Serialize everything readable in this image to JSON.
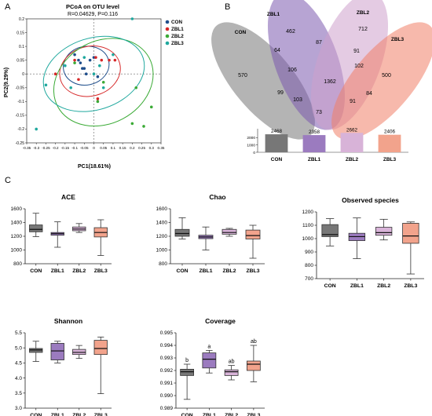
{
  "panel_labels": {
    "a": "A",
    "b": "B",
    "c": "C"
  },
  "colors": {
    "CON": "#1f4e8c",
    "ZBL1": "#d62728",
    "ZBL2": "#3aaa35",
    "ZBL3": "#1fa89e"
  },
  "box_colors": {
    "CON": "#777777",
    "ZBL1": "#9b7bbf",
    "ZBL2": "#d8b3d8",
    "ZBL3": "#f2a38c"
  },
  "chart_data": [
    {
      "id": "pcoa",
      "type": "scatter",
      "title": "PCoA on OTU level",
      "subtitle": "R=0.04629, P=0.116",
      "xlabel": "PC1(18.61%)",
      "ylabel": "PC2(9.29%)",
      "xlim": [
        -0.35,
        0.35
      ],
      "ylim": [
        -0.25,
        0.2
      ],
      "xticks": [
        "-0.35",
        "-0.3",
        "-0.25",
        "-0.2",
        "-0.15",
        "-0.1",
        "-0.05",
        "0",
        "0.05",
        "0.1",
        "0.15",
        "0.2",
        "0.25",
        "0.3",
        "0.35"
      ],
      "yticks": [
        "0.2",
        "0.15",
        "0.1",
        "0.05",
        "0",
        "-0.05",
        "-0.1",
        "-0.15",
        "-0.2",
        "-0.25"
      ],
      "legend_position": "top-right",
      "series": [
        {
          "name": "CON",
          "points": [
            [
              -0.1,
              0.07
            ],
            [
              -0.08,
              0.05
            ],
            [
              -0.07,
              0.04
            ],
            [
              -0.05,
              0.02
            ],
            [
              -0.02,
              0.05
            ],
            [
              0.0,
              0.06
            ],
            [
              -0.04,
              0.0
            ],
            [
              0.02,
              -0.01
            ],
            [
              -0.06,
              0.02
            ]
          ]
        },
        {
          "name": "ZBL1",
          "points": [
            [
              -0.2,
              0.0
            ],
            [
              -0.08,
              -0.02
            ],
            [
              -0.1,
              0.05
            ],
            [
              0.02,
              -0.09
            ],
            [
              0.08,
              0.05
            ],
            [
              0.11,
              0.05
            ],
            [
              0.04,
              0.05
            ],
            [
              0.01,
              0.06
            ]
          ]
        },
        {
          "name": "ZBL2",
          "points": [
            [
              0.02,
              -0.1
            ],
            [
              0.22,
              -0.05
            ],
            [
              0.3,
              -0.12
            ],
            [
              0.26,
              -0.19
            ],
            [
              0.2,
              -0.18
            ],
            [
              0.05,
              -0.03
            ],
            [
              -0.1,
              0.04
            ]
          ]
        },
        {
          "name": "ZBL3",
          "points": [
            [
              -0.25,
              -0.04
            ],
            [
              -0.3,
              -0.2
            ],
            [
              -0.15,
              0.03
            ],
            [
              -0.12,
              -0.05
            ],
            [
              0.0,
              0.0
            ],
            [
              0.03,
              0.03
            ],
            [
              -0.05,
              0.06
            ],
            [
              0.2,
              0.2
            ],
            [
              0.1,
              0.07
            ],
            [
              0.05,
              -0.05
            ]
          ]
        }
      ]
    },
    {
      "id": "venn",
      "type": "venn",
      "sets": [
        "CON",
        "ZBL1",
        "ZBL2",
        "ZBL3"
      ],
      "regions": [
        "462",
        "712",
        "570",
        "500",
        "64",
        "87",
        "91",
        "106",
        "1362",
        "102",
        "99",
        "84",
        "103",
        "91",
        "73"
      ],
      "totals": {
        "title": "",
        "categories": [
          "CON",
          "ZBL1",
          "ZBL2",
          "ZBL3"
        ],
        "values": [
          2468,
          2358,
          2662,
          2406
        ],
        "yticks": [
          "0",
          "1000",
          "2000"
        ],
        "ylim": [
          0,
          2800
        ]
      }
    },
    {
      "id": "ace",
      "type": "box",
      "title": "ACE",
      "categories": [
        "CON",
        "ZBL1",
        "ZBL2",
        "ZBL3"
      ],
      "ylim": [
        800,
        1600
      ],
      "yticks": [
        "800",
        "1000",
        "1200",
        "1400",
        "1600"
      ],
      "boxes": [
        {
          "min": 1195,
          "q1": 1265,
          "median": 1300,
          "q3": 1365,
          "max": 1535
        },
        {
          "min": 1040,
          "q1": 1215,
          "median": 1238,
          "q3": 1255,
          "max": 1410
        },
        {
          "min": 1255,
          "q1": 1280,
          "median": 1305,
          "q3": 1335,
          "max": 1385
        },
        {
          "min": 920,
          "q1": 1190,
          "median": 1255,
          "q3": 1325,
          "max": 1440
        }
      ]
    },
    {
      "id": "chao",
      "type": "box",
      "title": "Chao",
      "categories": [
        "CON",
        "ZBL1",
        "ZBL2",
        "ZBL3"
      ],
      "ylim": [
        800,
        1600
      ],
      "yticks": [
        "800",
        "1000",
        "1200",
        "1400",
        "1600"
      ],
      "boxes": [
        {
          "min": 1160,
          "q1": 1200,
          "median": 1240,
          "q3": 1300,
          "max": 1470
        },
        {
          "min": 1000,
          "q1": 1165,
          "median": 1190,
          "q3": 1215,
          "max": 1335
        },
        {
          "min": 1200,
          "q1": 1230,
          "median": 1255,
          "q3": 1300,
          "max": 1315
        },
        {
          "min": 880,
          "q1": 1160,
          "median": 1210,
          "q3": 1290,
          "max": 1360
        }
      ]
    },
    {
      "id": "observed",
      "type": "box",
      "title": "Observed species",
      "categories": [
        "CON",
        "ZBL1",
        "ZBL2",
        "ZBL3"
      ],
      "ylim": [
        700,
        1200
      ],
      "yticks": [
        "700",
        "800",
        "900",
        "1000",
        "1100",
        "1200"
      ],
      "boxes": [
        {
          "min": 945,
          "q1": 1015,
          "median": 1030,
          "q3": 1105,
          "max": 1150
        },
        {
          "min": 850,
          "q1": 985,
          "median": 1015,
          "q3": 1040,
          "max": 1155
        },
        {
          "min": 990,
          "q1": 1025,
          "median": 1045,
          "q3": 1085,
          "max": 1145
        },
        {
          "min": 735,
          "q1": 965,
          "median": 1020,
          "q3": 1115,
          "max": 1125
        }
      ]
    },
    {
      "id": "shannon",
      "type": "box",
      "title": "Shannon",
      "categories": [
        "CON",
        "ZBL1",
        "ZBL2",
        "ZBL3"
      ],
      "ylim": [
        3.0,
        5.5
      ],
      "yticks": [
        "3.0",
        "3.5",
        "4.0",
        "4.5",
        "5.0",
        "5.5"
      ],
      "boxes": [
        {
          "min": 4.55,
          "q1": 4.85,
          "median": 4.93,
          "q3": 4.98,
          "max": 5.22
        },
        {
          "min": 4.5,
          "q1": 4.6,
          "median": 4.9,
          "q3": 5.15,
          "max": 5.22
        },
        {
          "min": 4.65,
          "q1": 4.78,
          "median": 4.85,
          "q3": 4.95,
          "max": 5.08
        },
        {
          "min": 3.48,
          "q1": 4.78,
          "median": 4.98,
          "q3": 5.25,
          "max": 5.36
        }
      ]
    },
    {
      "id": "coverage",
      "type": "box",
      "title": "Coverage",
      "categories": [
        "CON",
        "ZBL1",
        "ZBL2",
        "ZBL3"
      ],
      "ylim": [
        0.989,
        0.995
      ],
      "yticks": [
        "0.989",
        "0.990",
        "0.991",
        "0.992",
        "0.993",
        "0.994",
        "0.995"
      ],
      "boxes": [
        {
          "min": 0.9897,
          "q1": 0.9916,
          "median": 0.9919,
          "q3": 0.9921,
          "max": 0.9925
        },
        {
          "min": 0.9918,
          "q1": 0.9922,
          "median": 0.9929,
          "q3": 0.9934,
          "max": 0.9936
        },
        {
          "min": 0.99125,
          "q1": 0.9916,
          "median": 0.9919,
          "q3": 0.99205,
          "max": 0.9924
        },
        {
          "min": 0.9911,
          "q1": 0.992,
          "median": 0.9925,
          "q3": 0.99275,
          "max": 0.994
        }
      ],
      "annotations": [
        "b",
        "a",
        "ab",
        "ab"
      ]
    }
  ]
}
